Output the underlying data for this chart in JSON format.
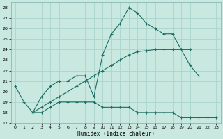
{
  "xlabel": "Humidex (Indice chaleur)",
  "xlim": [
    -0.5,
    23.5
  ],
  "ylim": [
    17,
    28.5
  ],
  "yticks": [
    17,
    18,
    19,
    20,
    21,
    22,
    23,
    24,
    25,
    26,
    27,
    28
  ],
  "xticks": [
    0,
    1,
    2,
    3,
    4,
    5,
    6,
    7,
    8,
    9,
    10,
    11,
    12,
    13,
    14,
    15,
    16,
    17,
    18,
    19,
    20,
    21,
    22,
    23
  ],
  "bg_color": "#c8e8e0",
  "line_color": "#1a6e64",
  "grid_color": "#aad4cc",
  "line1_x": [
    0,
    1,
    2,
    3,
    4,
    5,
    6,
    7,
    8,
    9,
    10,
    11,
    12,
    13,
    14,
    15,
    16,
    17,
    18,
    19,
    20,
    21
  ],
  "line1_y": [
    20.5,
    19.0,
    18.0,
    19.5,
    20.5,
    21.0,
    21.0,
    21.5,
    21.5,
    19.5,
    23.5,
    25.5,
    26.5,
    28.0,
    27.5,
    26.5,
    26.0,
    25.5,
    25.5,
    24.0,
    22.5,
    21.5
  ],
  "line2_x": [
    2,
    3,
    4,
    5,
    6,
    7,
    8,
    9,
    10,
    11,
    12,
    13,
    14,
    15,
    16,
    17,
    18,
    19,
    20
  ],
  "line2_y": [
    18.0,
    18.5,
    19.0,
    19.5,
    20.0,
    20.5,
    21.0,
    21.5,
    22.0,
    22.5,
    23.0,
    23.5,
    23.8,
    23.9,
    24.0,
    24.0,
    24.0,
    24.0,
    24.0
  ],
  "line3_x": [
    2,
    3,
    4,
    5,
    6,
    7,
    8,
    9,
    10,
    11,
    12,
    13,
    14,
    15,
    16,
    17,
    18,
    19,
    20,
    21,
    22,
    23
  ],
  "line3_y": [
    18.0,
    18.0,
    18.5,
    19.0,
    19.0,
    19.0,
    19.0,
    19.0,
    18.5,
    18.5,
    18.5,
    18.5,
    18.0,
    18.0,
    18.0,
    18.0,
    18.0,
    17.5,
    17.5,
    17.5,
    17.5,
    17.5
  ]
}
